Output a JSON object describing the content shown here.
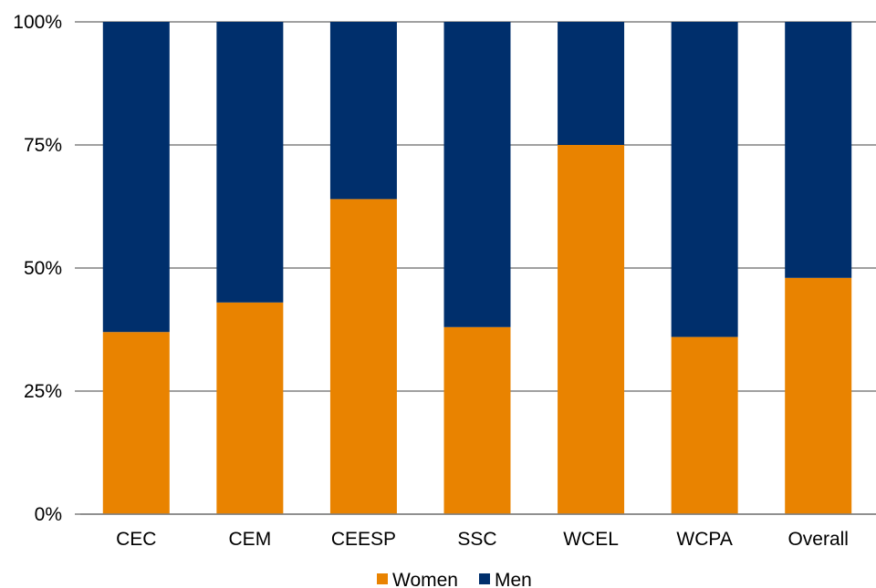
{
  "chart_data": {
    "type": "bar",
    "stacked": true,
    "percent": true,
    "categories": [
      "CEC",
      "CEM",
      "CEESP",
      "SSC",
      "WCEL",
      "WCPA",
      "Overall"
    ],
    "series": [
      {
        "name": "Women",
        "color": "#E98300",
        "values": [
          37,
          43,
          64,
          38,
          75,
          36,
          48
        ]
      },
      {
        "name": "Men",
        "color": "#002F6C",
        "values": [
          63,
          57,
          36,
          62,
          25,
          64,
          52
        ]
      }
    ],
    "ylim": [
      0,
      100
    ],
    "yticks": [
      "0%",
      "25%",
      "50%",
      "75%",
      "100%"
    ],
    "ytick_values": [
      0,
      25,
      50,
      75,
      100
    ],
    "grid": true,
    "legend": "bottom"
  }
}
